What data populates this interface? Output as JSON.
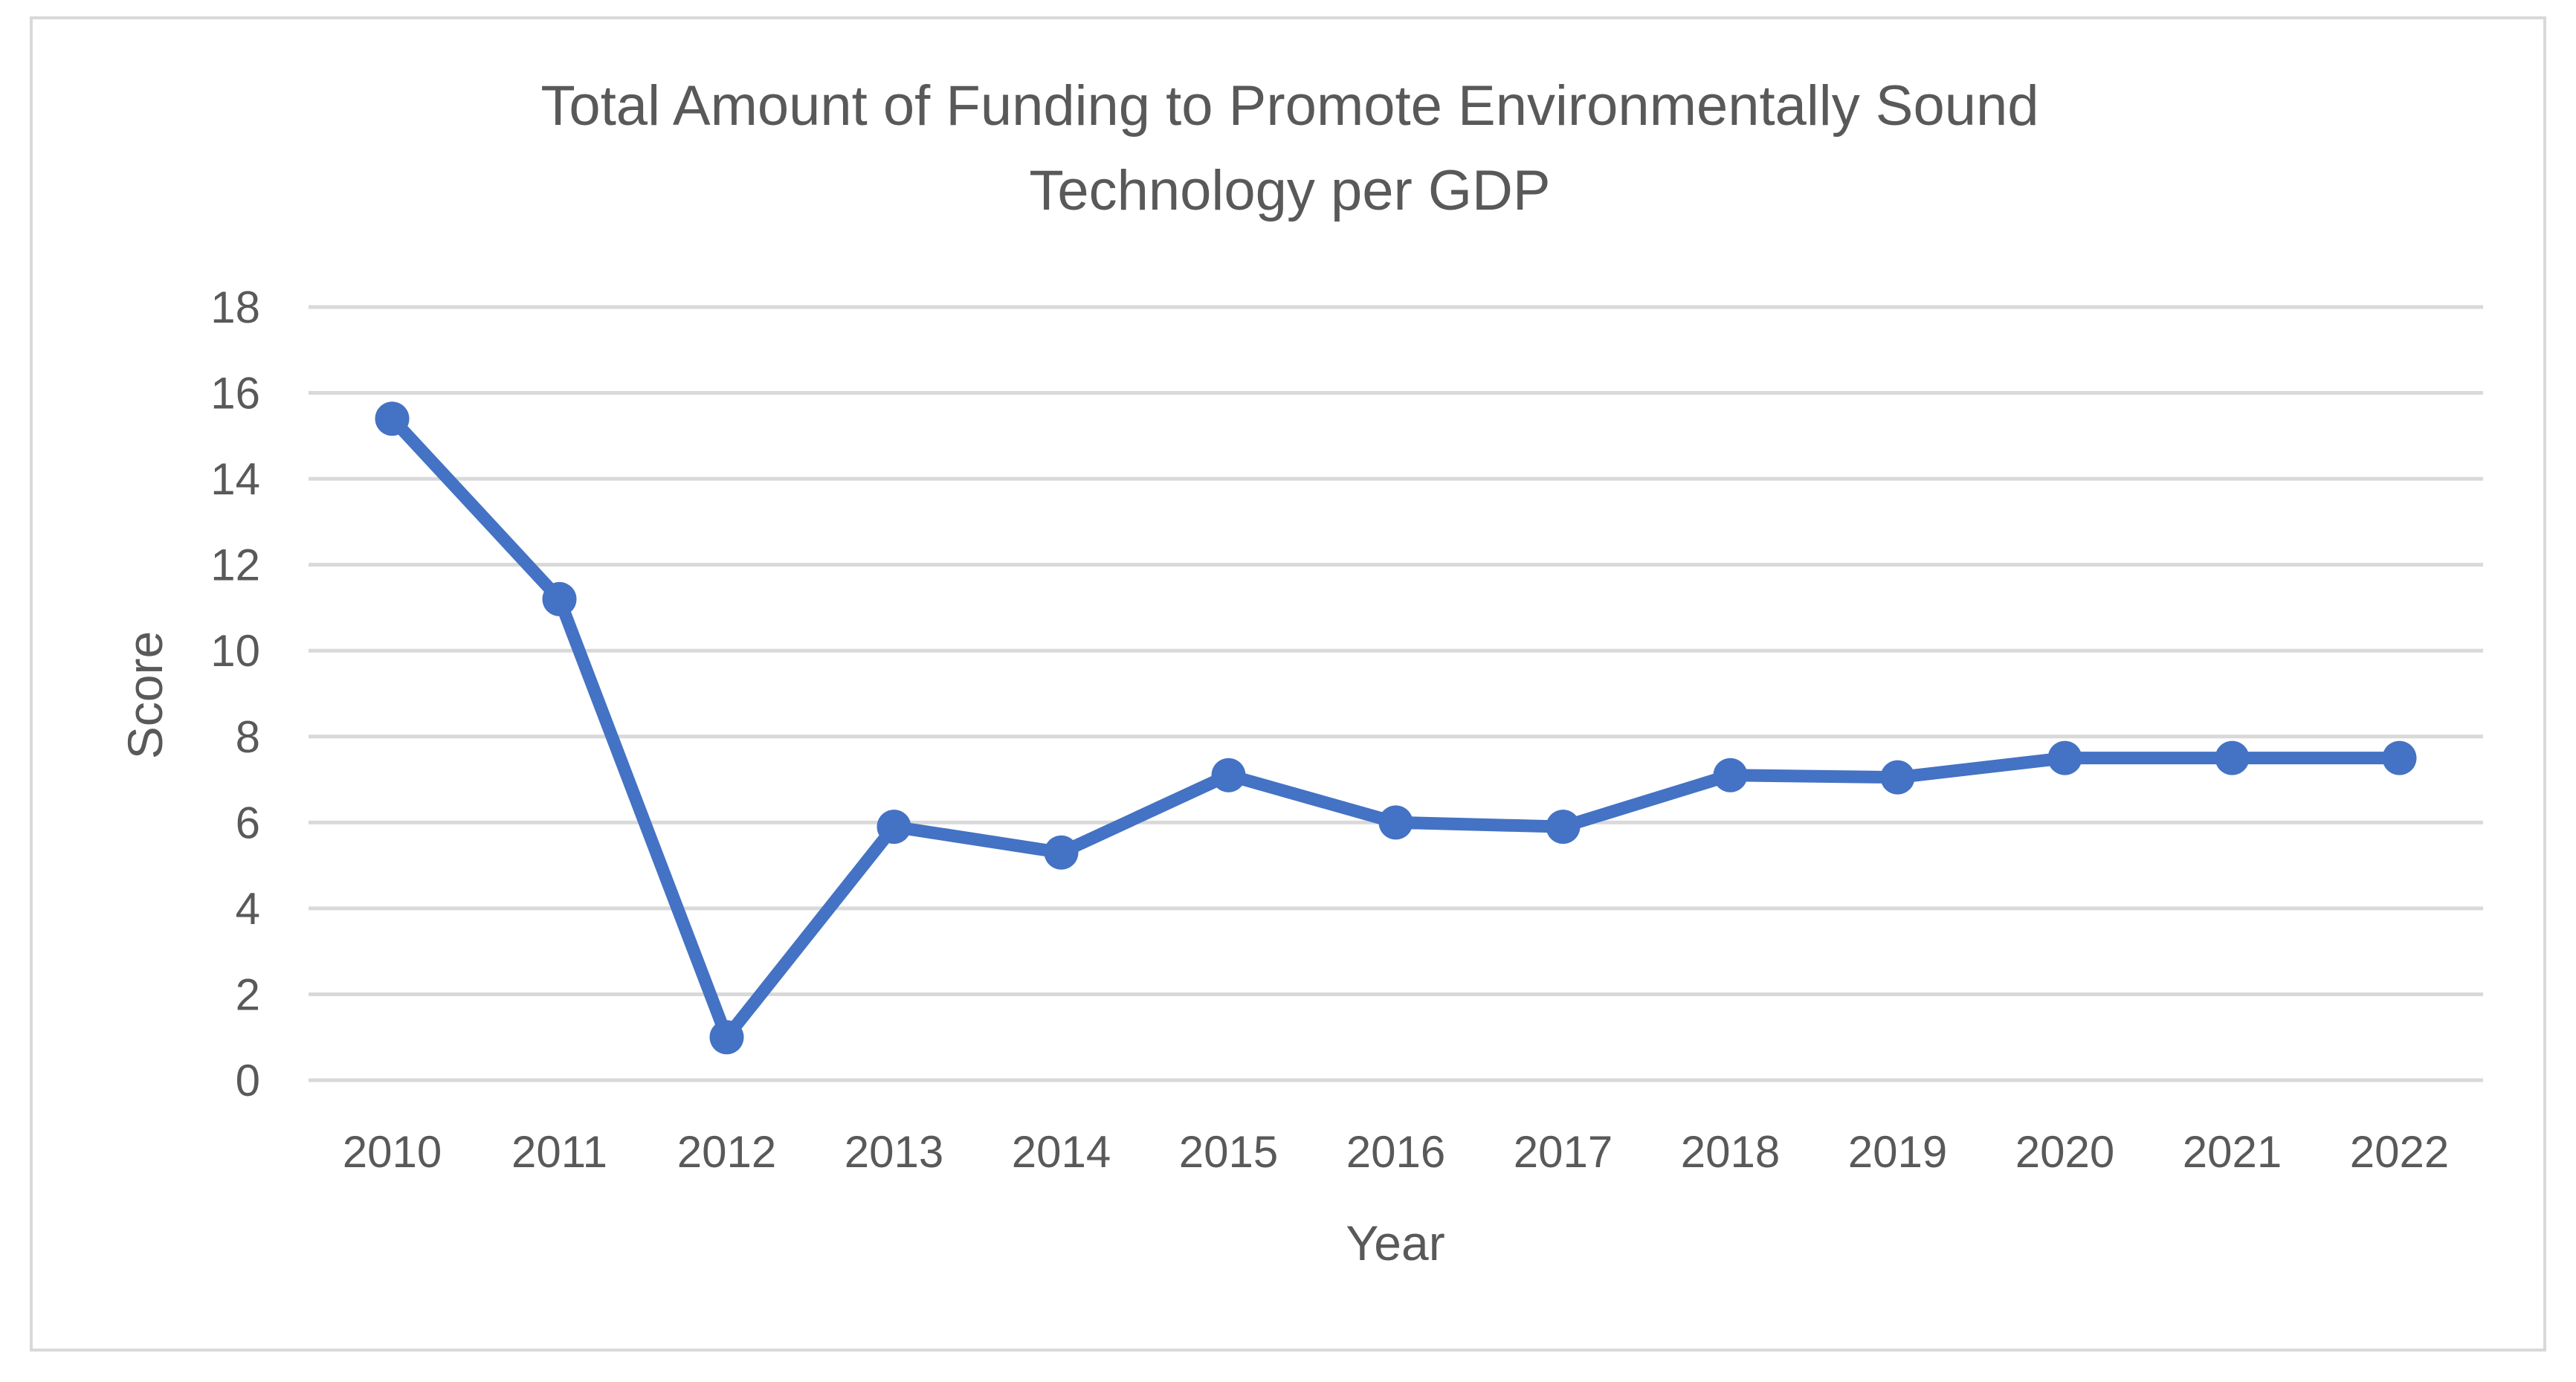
{
  "chart_data": {
    "type": "line",
    "title_lines": [
      "Total Amount of Funding to Promote Environmentally Sound",
      "Technology per GDP"
    ],
    "xlabel": "Year",
    "ylabel": "Score",
    "categories": [
      "2010",
      "2011",
      "2012",
      "2013",
      "2014",
      "2015",
      "2016",
      "2017",
      "2018",
      "2019",
      "2020",
      "2021",
      "2022"
    ],
    "series": [
      {
        "name": "Score",
        "values": [
          15.4,
          11.2,
          1.0,
          5.9,
          5.3,
          7.1,
          6.0,
          5.9,
          7.1,
          7.05,
          7.5,
          7.5,
          7.5
        ]
      }
    ],
    "ylim": [
      0,
      18
    ],
    "yticks": [
      0,
      2,
      4,
      6,
      8,
      10,
      12,
      14,
      16,
      18
    ],
    "grid": true,
    "legend": "none",
    "colors": {
      "line": "#4472c4",
      "grid": "#d9d9d9",
      "text": "#595959",
      "border": "#d9d9d9"
    }
  }
}
